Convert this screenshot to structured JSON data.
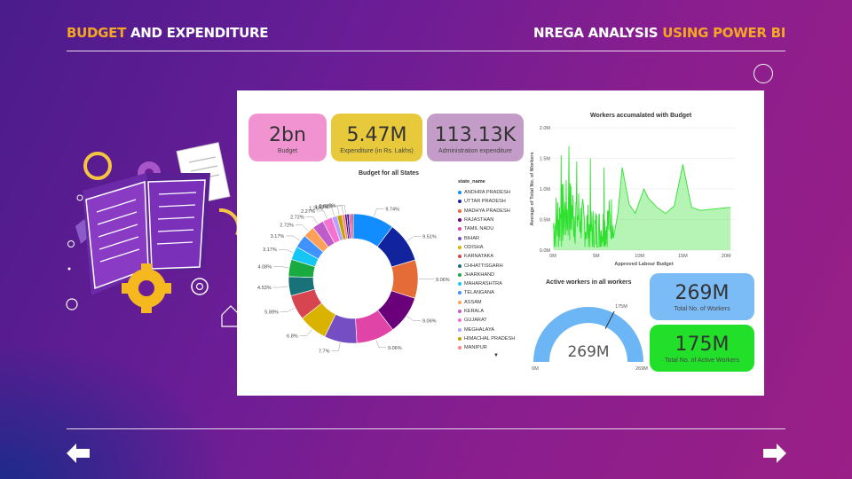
{
  "header": {
    "left_accent": "BUDGET",
    "left_rest": " AND EXPENDITURE",
    "right_main": "NREGA ANALYSIS ",
    "right_accent": "USING POWER BI"
  },
  "colors": {
    "accent": "#f5a623",
    "kpi_pink": "#f093d0",
    "kpi_yellow": "#e8c93b",
    "kpi_lavender": "#c49cc8",
    "kpi_blue": "#7cbcf6",
    "kpi_green": "#22e02a"
  },
  "kpis": {
    "budget": {
      "value": "2bn",
      "label": "Budget"
    },
    "expenditure": {
      "value": "5.47M",
      "label": "Expenditure (in Rs. Lakhs)"
    },
    "admin": {
      "value": "113.13K",
      "label": "Administration expenditure"
    },
    "workers": {
      "value": "269M",
      "label": "Total No. of Workers"
    },
    "active": {
      "value": "175M",
      "label": "Total No. of Active Workers"
    }
  },
  "chart_data": [
    {
      "type": "pie",
      "title": "Budget for all States",
      "legend_title": "state_name",
      "legend": [
        "ANDHRA PRADESH",
        "UTTAR PRADESH",
        "MADHYA PRADESH",
        "RAJASTHAN",
        "TAMIL NADU",
        "BIHAR",
        "ODISHA",
        "KARNATAKA",
        "CHHATTISGARH",
        "JHARKHAND",
        "MAHARASHTRA",
        "TELANGANA",
        "ASSAM",
        "KERALA",
        "GUJARAT",
        "MEGHALAYA",
        "HIMACHAL PRADESH",
        "MANIPUR"
      ],
      "slices": [
        {
          "value": 9.74,
          "label": "9.74%",
          "color": "#118dff"
        },
        {
          "value": 9.51,
          "label": "9.51%",
          "color": "#12239e"
        },
        {
          "value": 9.06,
          "label": "9.06%",
          "color": "#e66c37"
        },
        {
          "value": 9.06,
          "label": "9.06%",
          "color": "#6b007b"
        },
        {
          "value": 9.06,
          "label": "9.06%",
          "color": "#e044a7"
        },
        {
          "value": 7.7,
          "label": "7.7%",
          "color": "#744ec2"
        },
        {
          "value": 6.8,
          "label": "6.8%",
          "color": "#d9b300"
        },
        {
          "value": 5.89,
          "label": "5.89%",
          "color": "#d64550"
        },
        {
          "value": 4.53,
          "label": "4.53%",
          "color": "#197278"
        },
        {
          "value": 4.08,
          "label": "4.08%",
          "color": "#1aab40"
        },
        {
          "value": 3.17,
          "label": "3.17%",
          "color": "#15c6f4"
        },
        {
          "value": 3.17,
          "label": "3.17%",
          "color": "#4092ff"
        },
        {
          "value": 2.72,
          "label": "2.72%",
          "color": "#ffa058"
        },
        {
          "value": 2.72,
          "label": "2.72%",
          "color": "#be5dc9"
        },
        {
          "value": 2.27,
          "label": "2.27%",
          "color": "#f472d0"
        },
        {
          "value": 1.25,
          "label": "1.25%",
          "color": "#b5a1ff"
        },
        {
          "value": 1.13,
          "label": "1.13%",
          "color": "#c4a200"
        },
        {
          "value": 0.68,
          "label": "0.68%",
          "color": "#ff8080"
        },
        {
          "value": 0.5,
          "label": "0%",
          "color": "#6b007b"
        },
        {
          "value": 0.5,
          "label": "",
          "color": "#12239e"
        },
        {
          "value": 0.5,
          "label": "",
          "color": "#e044a7"
        },
        {
          "value": 0.5,
          "label": "",
          "color": "#d64550"
        }
      ]
    },
    {
      "type": "area",
      "title": "Workers accumalated with Budget",
      "xlabel": "Approved Labour Budget",
      "ylabel": "Average of Total No. of Workers",
      "xticks": [
        "0M",
        "5M",
        "10M",
        "15M",
        "20M"
      ],
      "yticks": [
        "0.0M",
        "0.5M",
        "1.0M",
        "1.5M",
        "2.0M"
      ],
      "xlim": [
        0,
        21
      ],
      "ylim": [
        0,
        2
      ],
      "color": "#2fe02f"
    },
    {
      "type": "gauge",
      "title": "Active workers in all workers",
      "value": 175,
      "max": 269,
      "center_label": "269M",
      "target_label": "175M",
      "min_label": "0M",
      "max_label": "269M"
    }
  ]
}
